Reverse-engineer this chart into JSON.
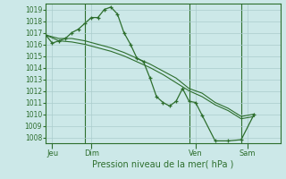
{
  "background_color": "#cce8e8",
  "grid_color": "#aacccc",
  "line_color": "#2d6e2d",
  "marker_color": "#2d6e2d",
  "xlabel": "Pression niveau de la mer( hPa )",
  "ylim": [
    1007.5,
    1019.5
  ],
  "yticks": [
    1008,
    1009,
    1010,
    1011,
    1012,
    1013,
    1014,
    1015,
    1016,
    1017,
    1018,
    1019
  ],
  "xlim": [
    0,
    108
  ],
  "day_lines": [
    18,
    66,
    90
  ],
  "xtick_positions": [
    3,
    21,
    69,
    93
  ],
  "xtick_labels": [
    "Jeu",
    "Dim",
    "Ven",
    "Sam"
  ],
  "series1": [
    [
      0,
      1016.8
    ],
    [
      3,
      1016.1
    ],
    [
      6,
      1016.3
    ],
    [
      9,
      1016.5
    ],
    [
      12,
      1017.0
    ],
    [
      15,
      1017.3
    ],
    [
      18,
      1017.8
    ],
    [
      21,
      1018.3
    ],
    [
      24,
      1018.3
    ],
    [
      27,
      1019.0
    ],
    [
      30,
      1019.2
    ],
    [
      33,
      1018.6
    ],
    [
      36,
      1017.0
    ],
    [
      39,
      1016.0
    ],
    [
      42,
      1014.8
    ],
    [
      45,
      1014.5
    ],
    [
      48,
      1013.1
    ],
    [
      51,
      1011.5
    ],
    [
      54,
      1011.0
    ],
    [
      57,
      1010.7
    ],
    [
      60,
      1011.1
    ],
    [
      63,
      1012.2
    ],
    [
      66,
      1011.1
    ],
    [
      69,
      1011.0
    ],
    [
      72,
      1009.9
    ],
    [
      78,
      1007.7
    ],
    [
      84,
      1007.7
    ],
    [
      90,
      1007.8
    ],
    [
      96,
      1010.0
    ]
  ],
  "series2": [
    [
      0,
      1016.8
    ],
    [
      6,
      1016.5
    ],
    [
      12,
      1016.5
    ],
    [
      18,
      1016.3
    ],
    [
      24,
      1016.0
    ],
    [
      30,
      1015.7
    ],
    [
      36,
      1015.3
    ],
    [
      42,
      1014.8
    ],
    [
      48,
      1014.3
    ],
    [
      54,
      1013.7
    ],
    [
      60,
      1013.1
    ],
    [
      66,
      1012.2
    ],
    [
      72,
      1011.8
    ],
    [
      78,
      1011.0
    ],
    [
      84,
      1010.5
    ],
    [
      90,
      1009.8
    ],
    [
      96,
      1010.0
    ]
  ],
  "series3": [
    [
      0,
      1016.8
    ],
    [
      6,
      1016.3
    ],
    [
      12,
      1016.2
    ],
    [
      18,
      1016.0
    ],
    [
      24,
      1015.7
    ],
    [
      30,
      1015.4
    ],
    [
      36,
      1015.0
    ],
    [
      42,
      1014.5
    ],
    [
      48,
      1014.0
    ],
    [
      54,
      1013.4
    ],
    [
      60,
      1012.7
    ],
    [
      66,
      1012.0
    ],
    [
      72,
      1011.5
    ],
    [
      78,
      1010.8
    ],
    [
      84,
      1010.3
    ],
    [
      90,
      1009.6
    ],
    [
      96,
      1009.8
    ]
  ]
}
